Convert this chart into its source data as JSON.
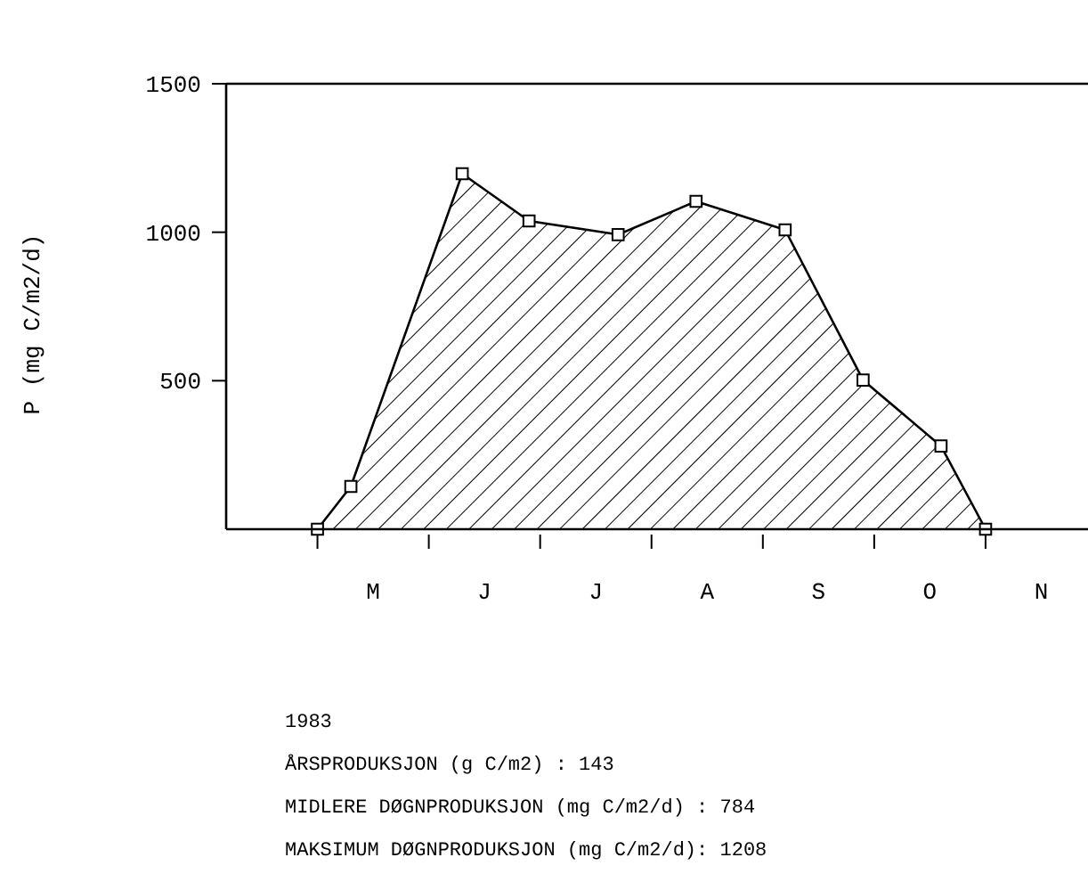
{
  "chart_data": {
    "type": "area",
    "ylabel": "P (mg C/m2/d)",
    "categories": [
      null,
      null,
      null,
      null,
      null,
      null,
      null,
      null,
      null,
      null,
      null,
      null,
      null,
      "M",
      null,
      null,
      null,
      null,
      null,
      null,
      null,
      null,
      null,
      "J",
      null,
      null,
      null,
      null,
      null,
      null,
      null,
      null,
      null,
      "J",
      null,
      null,
      null,
      null,
      null,
      null,
      null,
      null,
      null,
      "A",
      null,
      null,
      null,
      null,
      null,
      null,
      null,
      null,
      null,
      "S",
      null,
      null,
      null,
      null,
      null,
      null,
      null,
      null,
      null,
      "O",
      null,
      null,
      null,
      null,
      null,
      null,
      null,
      null,
      null,
      "N",
      null,
      null,
      null,
      null
    ],
    "series": [
      {
        "color": "#000000",
        "values": [
          null,
          null,
          null,
          null,
          null,
          null,
          null,
          null,
          0,
          null,
          null,
          144,
          null,
          null,
          null,
          null,
          null,
          null,
          null,
          null,
          null,
          1197,
          null,
          null,
          null,
          null,
          null,
          1038,
          null,
          null,
          null,
          null,
          null,
          null,
          null,
          992,
          null,
          null,
          null,
          null,
          null,
          null,
          1104,
          null,
          null,
          null,
          null,
          null,
          null,
          null,
          1008,
          null,
          null,
          null,
          null,
          null,
          null,
          502,
          null,
          null,
          null,
          null,
          null,
          null,
          280,
          null,
          null,
          null,
          0,
          null,
          null,
          null,
          null,
          null,
          null,
          null,
          null,
          null
        ]
      }
    ],
    "ylim": [
      0,
      1500
    ],
    "yticks": [
      500,
      1000,
      1500
    ],
    "marker": "square",
    "grid": false,
    "annotations": [
      "1983",
      "ÅRSPRODUKSJON (g C/m2) : 143",
      "MIDLERE DØGNPRODUKSJON (mg C/m2/d) : 784",
      "MAKSIMUM DØGNPRODUKSJON (mg C/m2/d): 1208"
    ]
  }
}
